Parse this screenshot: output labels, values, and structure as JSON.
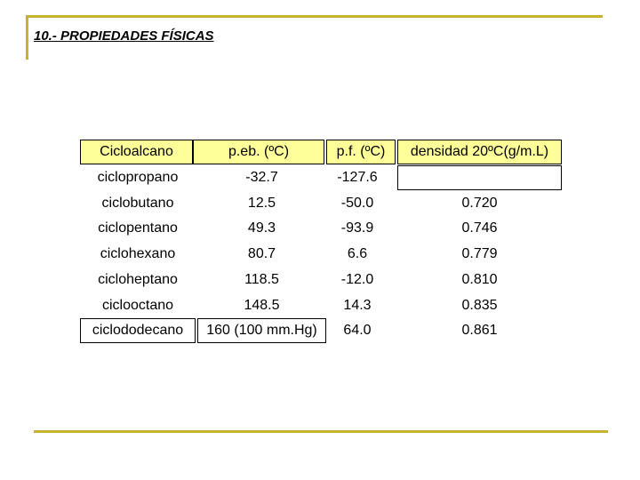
{
  "header": {
    "title": "10.- PROPIEDADES FÍSICAS"
  },
  "table": {
    "columns": [
      "Cicloalcano",
      "p.eb. (ºC)",
      "p.f. (ºC)",
      "densidad 20ºC(g/m.L)"
    ],
    "rows": [
      [
        "ciclopropano",
        "-32.7",
        "-127.6"
      ],
      [
        "ciclobutano",
        "12.5",
        "-50.0",
        "0.720"
      ],
      [
        "ciclopentano",
        "49.3",
        "-93.9",
        "0.746"
      ],
      [
        "ciclohexano",
        "80.7",
        "6.6",
        "0.779"
      ],
      [
        "cicloheptano",
        "118.5",
        "-12.0",
        "0.810"
      ],
      [
        "ciclooctano",
        "148.5",
        "14.3",
        "0.835"
      ],
      [
        "ciclododecano",
        "160 (100 mm.Hg)",
        "64.0",
        "0.861"
      ]
    ]
  }
}
